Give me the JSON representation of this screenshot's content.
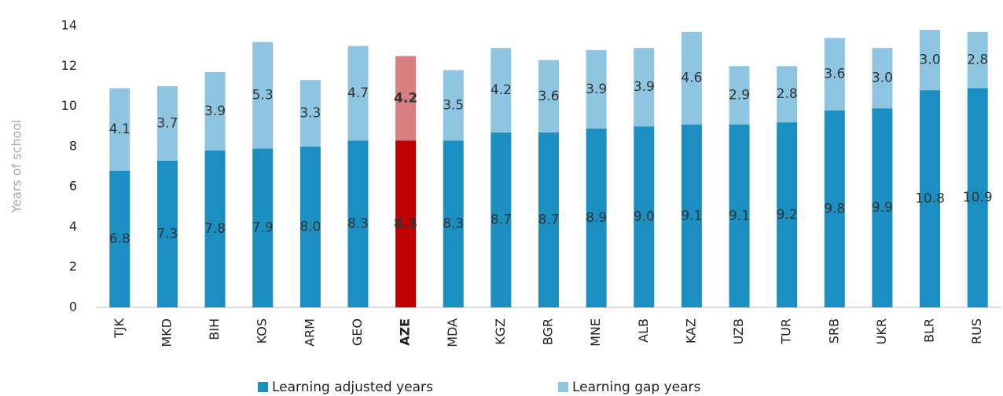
{
  "chart_data": {
    "type": "stacked_bar",
    "y_label": "Years of school",
    "categories": [
      "TJK",
      "MKD",
      "BIH",
      "KOS",
      "ARM",
      "GEO",
      "AZE",
      "MDA",
      "KGZ",
      "BGR",
      "MNE",
      "ALB",
      "KAZ",
      "UZB",
      "TUR",
      "SRB",
      "UKR",
      "BLR",
      "RUS"
    ],
    "highlight": "AZE",
    "series": [
      {
        "name": "Learning adjusted years",
        "color": "#1b8fc1",
        "highlight_color": "#c00000",
        "values": [
          6.8,
          7.3,
          7.8,
          7.9,
          8.0,
          8.3,
          8.3,
          8.3,
          8.7,
          8.7,
          8.9,
          9.0,
          9.1,
          9.1,
          9.2,
          9.8,
          9.9,
          10.8,
          10.9
        ],
        "value_labels": [
          "6.8",
          "7.3",
          "7.8",
          "7.9",
          "8.0",
          "8.3",
          "8.3",
          "8.3",
          "8.7",
          "8.7",
          "8.9",
          "9.0",
          "9.1",
          "9.1",
          "9.2",
          "9.8",
          "9.9",
          "10.8",
          "10.9"
        ]
      },
      {
        "name": "Learning gap years",
        "color": "#8ec6e1",
        "highlight_color": "#d97f82",
        "values": [
          4.1,
          3.7,
          3.9,
          5.3,
          3.3,
          4.7,
          4.2,
          3.5,
          4.2,
          3.6,
          3.9,
          3.9,
          4.6,
          2.9,
          2.8,
          3.6,
          3.0,
          3.0,
          2.8
        ],
        "value_labels": [
          "4.1",
          "3.7",
          "3.9",
          "5.3",
          "3.3",
          "4.7",
          "4.2",
          "3.5",
          "4.2",
          "3.6",
          "3.9",
          "3.9",
          "4.6",
          "2.9",
          "2.8",
          "3.6",
          "3.0",
          "3.0",
          "2.8"
        ]
      }
    ],
    "ylim": [
      0,
      14
    ],
    "yticks": [
      0,
      2,
      4,
      6,
      8,
      10,
      12,
      14
    ],
    "grid": false,
    "legend": "bottom"
  }
}
